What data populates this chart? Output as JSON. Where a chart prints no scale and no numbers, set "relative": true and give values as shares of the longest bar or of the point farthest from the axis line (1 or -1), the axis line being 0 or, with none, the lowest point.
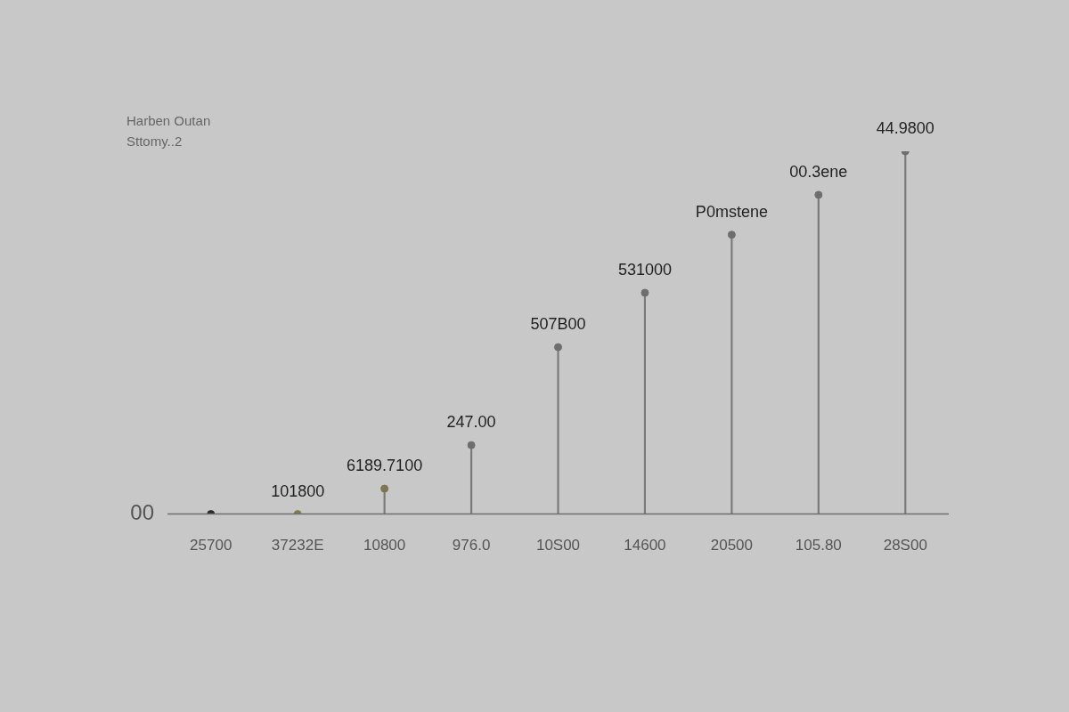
{
  "chart_data": {
    "type": "lollipop",
    "title": "Harben Outan",
    "subtitle": "Sttomy..2",
    "relative": true,
    "categories": [
      "25700",
      "37232E",
      "10800",
      "976.0",
      "10S00",
      "14600",
      "20500",
      "105.80",
      "28S00"
    ],
    "values": [
      0,
      0,
      0.07,
      0.19,
      0.46,
      0.61,
      0.77,
      0.88,
      1
    ],
    "colors": [
      "#2b2b2b",
      "#8a7a4a",
      "#7d7556",
      "#6e6e6e",
      "#6e6e6e",
      "#6e6e6e",
      "#6e6e6e",
      "#6e6e6e",
      "#6e6e6e"
    ],
    "annotations": [
      "00",
      {
        "text": "101800",
        "x": "37232E",
        "y": 0
      },
      {
        "text": "6189.7100",
        "x": "10800",
        "y": 0.07
      },
      {
        "text": "247.00",
        "x": "976.0",
        "y": 0.19
      },
      {
        "text": "507B00",
        "x": "10S00",
        "y": 0.46
      },
      {
        "text": "531000",
        "x": "14600",
        "y": 0.61
      },
      {
        "text": "P0mstene",
        "x": "20500",
        "y": 0.77
      },
      {
        "text": "00.3ene",
        "x": "105.80",
        "y": 0.88
      },
      {
        "text": "44.9800",
        "x": "28S00",
        "y": 1
      }
    ],
    "marker": "circle",
    "grid": false,
    "legend": false
  }
}
